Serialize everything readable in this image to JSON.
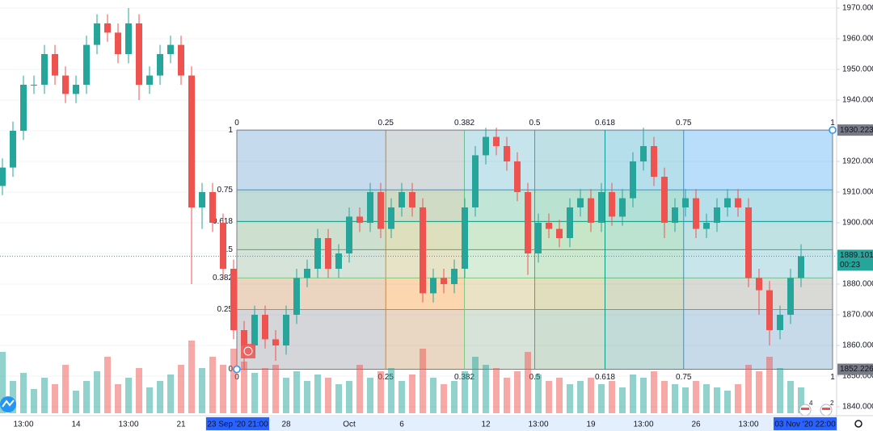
{
  "chart_data": {
    "type": "candlestick",
    "categories": [
      null,
      null,
      "13:00",
      null,
      null,
      null,
      null,
      "14",
      null,
      null,
      null,
      null,
      "13:00",
      null,
      null,
      null,
      null,
      "21",
      null,
      null,
      null,
      null,
      "23 Sep '20  21:00",
      null,
      null,
      null,
      null,
      "28",
      null,
      null,
      null,
      null,
      null,
      "Oct",
      null,
      null,
      null,
      null,
      "6",
      null,
      null,
      null,
      null,
      null,
      null,
      null,
      "12",
      null,
      null,
      null,
      null,
      "13:00",
      null,
      null,
      null,
      null,
      "19",
      null,
      null,
      null,
      null,
      "13:00",
      null,
      null,
      null,
      null,
      "26",
      null,
      null,
      null,
      null,
      "13:00",
      null,
      null,
      null,
      null,
      "03 Nov '20  22:00"
    ],
    "open": [
      1912,
      1918,
      1930,
      1945,
      1945,
      1955,
      1948,
      1942,
      1945,
      1958,
      1965,
      1962,
      1955,
      1965,
      1945,
      1948,
      1955,
      1958,
      1948,
      1905,
      1910,
      1900,
      1885,
      1865,
      1860,
      1870,
      1862,
      1860,
      1870,
      1882,
      1885,
      1895,
      1885,
      1890,
      1902,
      1900,
      1910,
      1898,
      1905,
      1910,
      1905,
      1877,
      1882,
      1880,
      1885,
      1905,
      1922,
      1928,
      1925,
      1920,
      1910,
      1890,
      1900,
      1898,
      1895,
      1905,
      1908,
      1900,
      1910,
      1902,
      1908,
      1920,
      1925,
      1915,
      1900,
      1905,
      1908,
      1898,
      1900,
      1905,
      1908,
      1905,
      1882,
      1878,
      1865,
      1870,
      1882
    ],
    "high": [
      1921,
      1933,
      1948,
      1948,
      1958,
      1958,
      1951,
      1948,
      1961,
      1968,
      1968,
      1965,
      1970,
      1968,
      1951,
      1958,
      1961,
      1961,
      1951,
      1913,
      1913,
      1903,
      1888,
      1868,
      1873,
      1873,
      1865,
      1873,
      1885,
      1888,
      1898,
      1898,
      1893,
      1905,
      1905,
      1913,
      1913,
      1908,
      1913,
      1913,
      1908,
      1885,
      1885,
      1888,
      1908,
      1925,
      1931,
      1931,
      1928,
      1923,
      1913,
      1903,
      1903,
      1901,
      1908,
      1911,
      1911,
      1913,
      1913,
      1911,
      1923,
      1931,
      1928,
      1918,
      1908,
      1911,
      1911,
      1903,
      1908,
      1911,
      1911,
      1908,
      1885,
      1881,
      1873,
      1885,
      1893
    ],
    "low": [
      1909,
      1915,
      1927,
      1942,
      1942,
      1945,
      1939,
      1939,
      1942,
      1955,
      1959,
      1952,
      1952,
      1940,
      1942,
      1945,
      1952,
      1945,
      1880,
      1898,
      1897,
      1882,
      1862,
      1852,
      1857,
      1859,
      1855,
      1857,
      1867,
      1879,
      1882,
      1882,
      1882,
      1887,
      1897,
      1897,
      1895,
      1895,
      1902,
      1902,
      1874,
      1874,
      1877,
      1877,
      1882,
      1902,
      1919,
      1922,
      1917,
      1907,
      1883,
      1887,
      1895,
      1892,
      1892,
      1902,
      1897,
      1897,
      1899,
      1899,
      1905,
      1917,
      1912,
      1895,
      1897,
      1902,
      1895,
      1895,
      1897,
      1902,
      1902,
      1879,
      1870,
      1860,
      1862,
      1867,
      1879
    ],
    "close": [
      1918,
      1930,
      1945,
      1945,
      1955,
      1948,
      1942,
      1945,
      1958,
      1965,
      1962,
      1955,
      1965,
      1945,
      1948,
      1955,
      1958,
      1948,
      1905,
      1910,
      1900,
      1885,
      1865,
      1860,
      1870,
      1862,
      1860,
      1870,
      1882,
      1885,
      1895,
      1885,
      1890,
      1902,
      1900,
      1910,
      1898,
      1905,
      1910,
      1905,
      1877,
      1882,
      1880,
      1885,
      1905,
      1922,
      1928,
      1925,
      1920,
      1910,
      1890,
      1900,
      1898,
      1895,
      1905,
      1908,
      1900,
      1910,
      1902,
      1908,
      1920,
      1925,
      1915,
      1900,
      1905,
      1908,
      1898,
      1900,
      1905,
      1908,
      1905,
      1882,
      1878,
      1865,
      1870,
      1882,
      1889.101
    ],
    "volume": [
      38,
      20,
      25,
      15,
      22,
      18,
      30,
      14,
      20,
      26,
      35,
      18,
      22,
      28,
      16,
      20,
      24,
      30,
      45,
      28,
      35,
      30,
      40,
      32,
      25,
      28,
      30,
      22,
      26,
      20,
      24,
      22,
      18,
      20,
      30,
      22,
      26,
      28,
      20,
      24,
      40,
      22,
      18,
      20,
      26,
      35,
      30,
      28,
      22,
      26,
      38,
      24,
      20,
      22,
      18,
      20,
      22,
      18,
      20,
      16,
      24,
      22,
      26,
      20,
      18,
      16,
      20,
      18,
      16,
      14,
      18,
      30,
      26,
      35,
      28,
      20,
      16
    ],
    "up_color": "#26a69a",
    "down_color": "#ef5350",
    "ylim": [
      1840,
      1970
    ],
    "yticks": [
      {
        "value": 1840,
        "label": "1840.000"
      },
      {
        "value": 1850,
        "label": "1850.000"
      },
      {
        "value": 1860,
        "label": "1860.000"
      },
      {
        "value": 1870,
        "label": "1870.000"
      },
      {
        "value": 1880,
        "label": "1880.000"
      },
      {
        "value": 1890,
        "label": "1890.000"
      },
      {
        "value": 1900,
        "label": "1900.000"
      },
      {
        "value": 1910,
        "label": "1910.000"
      },
      {
        "value": 1920,
        "label": "1920.000"
      },
      {
        "value": 1930,
        "label": "1930.000"
      },
      {
        "value": 1940,
        "label": "1940.000"
      },
      {
        "value": 1950,
        "label": "1950.000"
      },
      {
        "value": 1960,
        "label": "1960.000"
      },
      {
        "value": 1970,
        "label": "1970.000"
      }
    ],
    "grid": true,
    "fib": {
      "start_price": 1852.226,
      "end_price": 1930.223,
      "start_label": "1852.226",
      "end_label": "1930.223",
      "levels": [
        {
          "value": 0,
          "color": "#787b86"
        },
        {
          "value": 0.25,
          "color": "#f57c00"
        },
        {
          "value": 0.382,
          "color": "#81c784"
        },
        {
          "value": 0.5,
          "color": "#4caf50"
        },
        {
          "value": 0.618,
          "color": "#089981"
        },
        {
          "value": 0.75,
          "color": "#2196f3"
        },
        {
          "value": 1,
          "color": "#787b86"
        }
      ]
    },
    "last_price": 1889.101,
    "last_price_label": "1889.101",
    "countdown": "00:23",
    "events": [
      "4",
      "2"
    ]
  }
}
